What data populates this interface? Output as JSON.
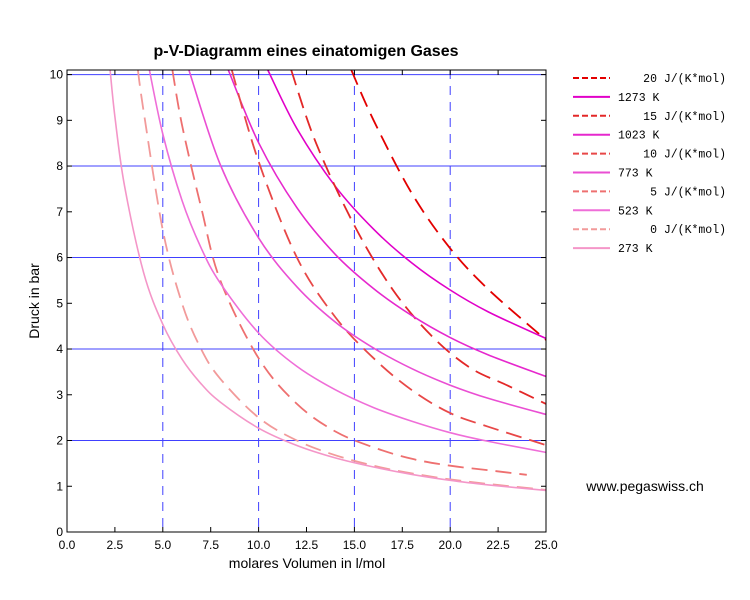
{
  "chart_data": {
    "type": "line",
    "title": "p-V-Diagramm eines einatomigen Gases",
    "xlabel": "molares Volumen in l/mol",
    "ylabel": "Druck in bar",
    "xlim": [
      0,
      25
    ],
    "ylim": [
      0,
      10.1
    ],
    "xticks": [
      "0.0",
      "2.5",
      "5.0",
      "7.5",
      "10.0",
      "12.5",
      "15.0",
      "17.5",
      "20.0",
      "22.5",
      "25.0"
    ],
    "yticks": [
      "0",
      "1",
      "2",
      "3",
      "4",
      "5",
      "6",
      "7",
      "8",
      "9",
      "10"
    ],
    "grid": {
      "horizontal": "solid",
      "vertical": "dashed",
      "vertical_at": [
        5,
        10,
        15,
        20
      ],
      "horizontal_at": [
        2,
        4,
        6,
        8,
        10
      ]
    },
    "legend_position": "right",
    "series": [
      {
        "name": "20 J/(K*mol)",
        "kind": "adiabat",
        "style": "dashed",
        "color": "#e30000",
        "points": [
          [
            14.84,
            10.1
          ],
          [
            16,
            9.0
          ],
          [
            18,
            7.4
          ],
          [
            20,
            6.2
          ],
          [
            22,
            5.3
          ],
          [
            25,
            4.2
          ]
        ]
      },
      {
        "name": "1273 K",
        "kind": "isotherm",
        "style": "solid",
        "color": "#e100c8",
        "points": [
          [
            10.48,
            10.1
          ],
          [
            12,
            8.82
          ],
          [
            14,
            7.56
          ],
          [
            16,
            6.62
          ],
          [
            18,
            5.88
          ],
          [
            20,
            5.29
          ],
          [
            22,
            4.81
          ],
          [
            25,
            4.23
          ]
        ]
      },
      {
        "name": "15 J/(K*mol)",
        "kind": "adiabat",
        "style": "dashed",
        "color": "#e32828",
        "points": [
          [
            11.7,
            10.1
          ],
          [
            13,
            8.5
          ],
          [
            15,
            6.7
          ],
          [
            17,
            5.3
          ],
          [
            19,
            4.3
          ],
          [
            21,
            3.6
          ],
          [
            23,
            3.2
          ],
          [
            25,
            2.8
          ]
        ]
      },
      {
        "name": "1023 K",
        "kind": "isotherm",
        "style": "solid",
        "color": "#e628cd",
        "points": [
          [
            8.42,
            10.1
          ],
          [
            10,
            8.51
          ],
          [
            12,
            7.09
          ],
          [
            14,
            6.07
          ],
          [
            16,
            5.32
          ],
          [
            18,
            4.73
          ],
          [
            20,
            4.25
          ],
          [
            22,
            3.87
          ],
          [
            25,
            3.4
          ]
        ]
      },
      {
        "name": "10 J/(K*mol)",
        "kind": "adiabat",
        "style": "dashed",
        "color": "#e84848",
        "points": [
          [
            8.6,
            10.1
          ],
          [
            10,
            8.1
          ],
          [
            12,
            6.0
          ],
          [
            14,
            4.7
          ],
          [
            16,
            3.8
          ],
          [
            18,
            3.1
          ],
          [
            20,
            2.6
          ],
          [
            22,
            2.3
          ],
          [
            25,
            1.9
          ]
        ]
      },
      {
        "name": "773 K",
        "kind": "isotherm",
        "style": "solid",
        "color": "#ea4ed3",
        "points": [
          [
            6.36,
            10.1
          ],
          [
            8,
            8.03
          ],
          [
            10,
            6.43
          ],
          [
            12,
            5.36
          ],
          [
            14,
            4.59
          ],
          [
            16,
            4.02
          ],
          [
            18,
            3.57
          ],
          [
            20,
            3.21
          ],
          [
            22,
            2.92
          ],
          [
            25,
            2.57
          ]
        ]
      },
      {
        "name": "5 J/(K*mol)",
        "kind": "adiabat",
        "style": "dashed",
        "color": "#ee7070",
        "points": [
          [
            5.5,
            10.1
          ],
          [
            6,
            8.9
          ],
          [
            7,
            7.1
          ],
          [
            8,
            5.5
          ],
          [
            10,
            3.8
          ],
          [
            12,
            2.8
          ],
          [
            14,
            2.2
          ],
          [
            16,
            1.85
          ],
          [
            18,
            1.6
          ],
          [
            20,
            1.45
          ],
          [
            22,
            1.35
          ],
          [
            24,
            1.25
          ]
        ]
      },
      {
        "name": "523 K",
        "kind": "isotherm",
        "style": "solid",
        "color": "#ef6ed8",
        "points": [
          [
            4.3,
            10.1
          ],
          [
            5,
            8.7
          ],
          [
            6,
            7.25
          ],
          [
            7,
            6.21
          ],
          [
            8,
            5.44
          ],
          [
            10,
            4.35
          ],
          [
            12,
            3.62
          ],
          [
            14,
            3.11
          ],
          [
            16,
            2.72
          ],
          [
            18,
            2.42
          ],
          [
            20,
            2.17
          ],
          [
            22,
            1.98
          ],
          [
            25,
            1.74
          ]
        ]
      },
      {
        "name": "0 J/(K*mol)",
        "kind": "adiabat",
        "style": "dashed",
        "color": "#f29a9a",
        "points": [
          [
            3.7,
            10.1
          ],
          [
            4,
            9.2
          ],
          [
            5,
            6.6
          ],
          [
            6,
            5.0
          ],
          [
            7,
            4.0
          ],
          [
            8,
            3.35
          ],
          [
            10,
            2.5
          ],
          [
            12,
            2.0
          ],
          [
            14,
            1.68
          ],
          [
            16,
            1.45
          ],
          [
            18,
            1.28
          ],
          [
            20,
            1.15
          ],
          [
            22,
            1.05
          ],
          [
            25,
            0.92
          ]
        ]
      },
      {
        "name": "273 K",
        "kind": "isotherm",
        "style": "solid",
        "color": "#f496c8",
        "points": [
          [
            2.25,
            10.1
          ],
          [
            2.5,
            9.08
          ],
          [
            3,
            7.57
          ],
          [
            4,
            5.67
          ],
          [
            5,
            4.54
          ],
          [
            6,
            3.78
          ],
          [
            7,
            3.24
          ],
          [
            8,
            2.84
          ],
          [
            10,
            2.27
          ],
          [
            12,
            1.89
          ],
          [
            14,
            1.62
          ],
          [
            16,
            1.42
          ],
          [
            18,
            1.26
          ],
          [
            20,
            1.13
          ],
          [
            22,
            1.03
          ],
          [
            25,
            0.91
          ]
        ]
      }
    ]
  },
  "credit": "www.pegaswiss.ch"
}
